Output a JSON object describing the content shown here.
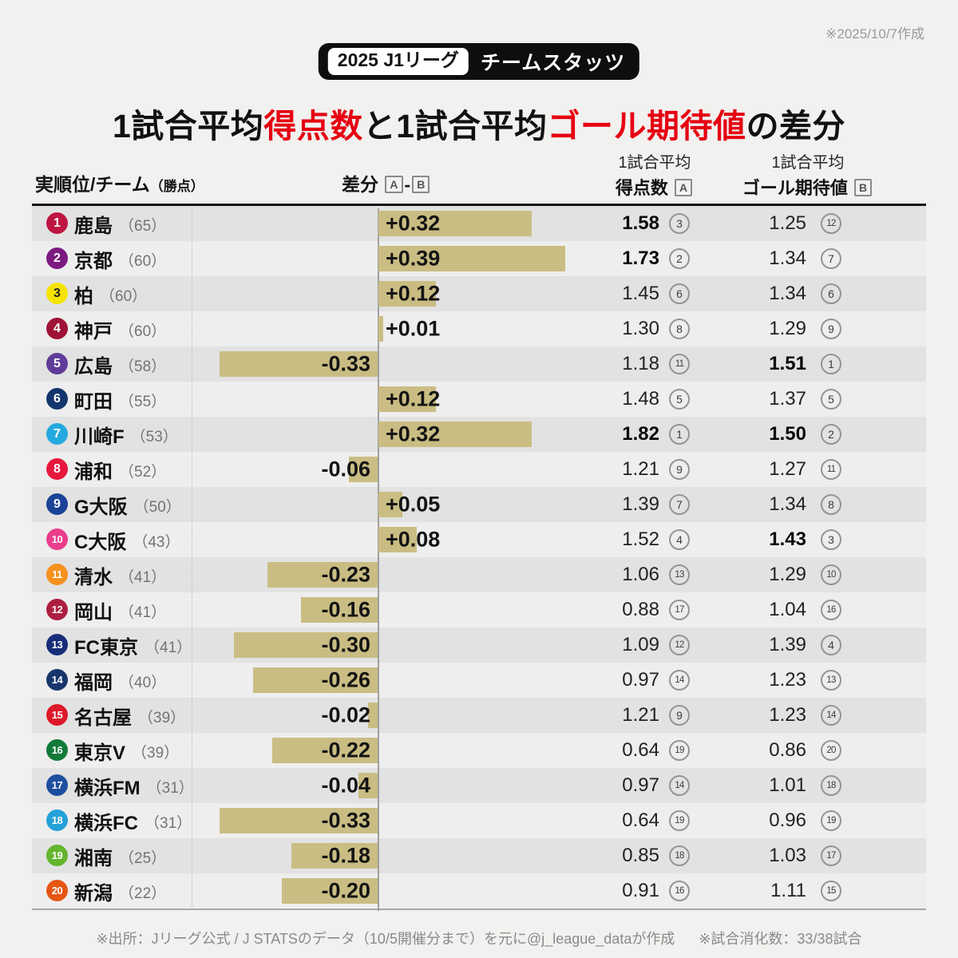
{
  "note_top_right": "※2025/10/7作成",
  "badge": {
    "league": "2025 J1リーグ",
    "label": "チームスタッツ"
  },
  "title": {
    "part1": "1試合平均",
    "part2": "得点数",
    "part3": "と1試合平均",
    "part4": "ゴール期待値",
    "part5": "の差分"
  },
  "table_header": {
    "team_col_main": "実順位/チーム",
    "team_col_sub": "（勝点）",
    "diff_col": "差分",
    "box_a": "A",
    "box_b": "B",
    "dash": "-",
    "goals_col_line1": "1試合平均",
    "goals_col_line2": "得点数",
    "xg_col_line1": "1試合平均",
    "xg_col_line2": "ゴール期待値"
  },
  "footer": {
    "source": "※出所：Jリーグ公式 / J STATSのデータ（10/5開催分まで）を元に@j_league_dataが作成",
    "games": "※試合消化数：33/38試合"
  },
  "colors": {
    "accent_red": "#e60012",
    "bar": "#cabd83",
    "row_odd": "#e2e2e2",
    "row_even": "#eeeeee",
    "page_bg": "#f1f1ef"
  },
  "chart_data": {
    "type": "bar",
    "orientation": "horizontal",
    "title": "1試合平均得点数と1試合平均ゴール期待値の差分",
    "note": "差分 = 1試合平均得点数(A) - 1試合平均ゴール期待値(B)",
    "xlim": [
      -0.4,
      0.4
    ],
    "rows": [
      {
        "rank": 1,
        "team": "鹿島",
        "points": 65,
        "diff_label": "+0.32",
        "diff": 0.32,
        "goals_avg": "1.58",
        "goals_rank": 3,
        "xg_avg": "1.25",
        "xg_rank": 12,
        "badge_color": "#bf1541",
        "badge_text": "#ffffff"
      },
      {
        "rank": 2,
        "team": "京都",
        "points": 60,
        "diff_label": "+0.39",
        "diff": 0.39,
        "goals_avg": "1.73",
        "goals_rank": 2,
        "xg_avg": "1.34",
        "xg_rank": 7,
        "badge_color": "#7d1a80",
        "badge_text": "#ffffff"
      },
      {
        "rank": 3,
        "team": "柏",
        "points": 60,
        "diff_label": "+0.12",
        "diff": 0.12,
        "goals_avg": "1.45",
        "goals_rank": 6,
        "xg_avg": "1.34",
        "xg_rank": 6,
        "badge_color": "#f5e400",
        "badge_text": "#222222"
      },
      {
        "rank": 4,
        "team": "神戸",
        "points": 60,
        "diff_label": "+0.01",
        "diff": 0.01,
        "goals_avg": "1.30",
        "goals_rank": 8,
        "xg_avg": "1.29",
        "xg_rank": 9,
        "badge_color": "#9e1335",
        "badge_text": "#ffffff"
      },
      {
        "rank": 5,
        "team": "広島",
        "points": 58,
        "diff_label": "-0.33",
        "diff": -0.33,
        "goals_avg": "1.18",
        "goals_rank": 11,
        "xg_avg": "1.51",
        "xg_rank": 1,
        "badge_color": "#5f3c99",
        "badge_text": "#ffffff"
      },
      {
        "rank": 6,
        "team": "町田",
        "points": 55,
        "diff_label": "+0.12",
        "diff": 0.12,
        "goals_avg": "1.48",
        "goals_rank": 5,
        "xg_avg": "1.37",
        "xg_rank": 5,
        "badge_color": "#14356e",
        "badge_text": "#ffffff"
      },
      {
        "rank": 7,
        "team": "川崎F",
        "points": 53,
        "diff_label": "+0.32",
        "diff": 0.32,
        "goals_avg": "1.82",
        "goals_rank": 1,
        "xg_avg": "1.50",
        "xg_rank": 2,
        "badge_color": "#25aadf",
        "badge_text": "#ffffff"
      },
      {
        "rank": 8,
        "team": "浦和",
        "points": 52,
        "diff_label": "-0.06",
        "diff": -0.06,
        "goals_avg": "1.21",
        "goals_rank": 9,
        "xg_avg": "1.27",
        "xg_rank": 11,
        "badge_color": "#e6183c",
        "badge_text": "#ffffff"
      },
      {
        "rank": 9,
        "team": "G大阪",
        "points": 50,
        "diff_label": "+0.05",
        "diff": 0.05,
        "goals_avg": "1.39",
        "goals_rank": 7,
        "xg_avg": "1.34",
        "xg_rank": 8,
        "badge_color": "#1a4397",
        "badge_text": "#ffffff"
      },
      {
        "rank": 10,
        "team": "C大阪",
        "points": 43,
        "diff_label": "+0.08",
        "diff": 0.08,
        "goals_avg": "1.52",
        "goals_rank": 4,
        "xg_avg": "1.43",
        "xg_rank": 3,
        "badge_color": "#ea3d8c",
        "badge_text": "#ffffff"
      },
      {
        "rank": 11,
        "team": "清水",
        "points": 41,
        "diff_label": "-0.23",
        "diff": -0.23,
        "goals_avg": "1.06",
        "goals_rank": 13,
        "xg_avg": "1.29",
        "xg_rank": 10,
        "badge_color": "#f6911e",
        "badge_text": "#ffffff"
      },
      {
        "rank": 12,
        "team": "岡山",
        "points": 41,
        "diff_label": "-0.16",
        "diff": -0.16,
        "goals_avg": "0.88",
        "goals_rank": 17,
        "xg_avg": "1.04",
        "xg_rank": 16,
        "badge_color": "#ad1e40",
        "badge_text": "#ffffff"
      },
      {
        "rank": 13,
        "team": "FC東京",
        "points": 41,
        "diff_label": "-0.30",
        "diff": -0.3,
        "goals_avg": "1.09",
        "goals_rank": 12,
        "xg_avg": "1.39",
        "xg_rank": 4,
        "badge_color": "#172d7a",
        "badge_text": "#ffffff"
      },
      {
        "rank": 14,
        "team": "福岡",
        "points": 40,
        "diff_label": "-0.26",
        "diff": -0.26,
        "goals_avg": "0.97",
        "goals_rank": 14,
        "xg_avg": "1.23",
        "xg_rank": 13,
        "badge_color": "#17356c",
        "badge_text": "#ffffff"
      },
      {
        "rank": 15,
        "team": "名古屋",
        "points": 39,
        "diff_label": "-0.02",
        "diff": -0.02,
        "goals_avg": "1.21",
        "goals_rank": 9,
        "xg_avg": "1.23",
        "xg_rank": 14,
        "badge_color": "#dd1828",
        "badge_text": "#ffffff"
      },
      {
        "rank": 16,
        "team": "東京V",
        "points": 39,
        "diff_label": "-0.22",
        "diff": -0.22,
        "goals_avg": "0.64",
        "goals_rank": 19,
        "xg_avg": "0.86",
        "xg_rank": 20,
        "badge_color": "#117a38",
        "badge_text": "#ffffff"
      },
      {
        "rank": 17,
        "team": "横浜FM",
        "points": 31,
        "diff_label": "-0.04",
        "diff": -0.04,
        "goals_avg": "0.97",
        "goals_rank": 14,
        "xg_avg": "1.01",
        "xg_rank": 18,
        "badge_color": "#1d4f9e",
        "badge_text": "#ffffff"
      },
      {
        "rank": 18,
        "team": "横浜FC",
        "points": 31,
        "diff_label": "-0.33",
        "diff": -0.33,
        "goals_avg": "0.64",
        "goals_rank": 19,
        "xg_avg": "0.96",
        "xg_rank": 19,
        "badge_color": "#25a0d8",
        "badge_text": "#ffffff"
      },
      {
        "rank": 19,
        "team": "湘南",
        "points": 25,
        "diff_label": "-0.18",
        "diff": -0.18,
        "goals_avg": "0.85",
        "goals_rank": 18,
        "xg_avg": "1.03",
        "xg_rank": 17,
        "badge_color": "#63b52e",
        "badge_text": "#ffffff"
      },
      {
        "rank": 20,
        "team": "新潟",
        "points": 22,
        "diff_label": "-0.20",
        "diff": -0.2,
        "goals_avg": "0.91",
        "goals_rank": 16,
        "xg_avg": "1.11",
        "xg_rank": 15,
        "badge_color": "#e55613",
        "badge_text": "#ffffff"
      }
    ]
  }
}
